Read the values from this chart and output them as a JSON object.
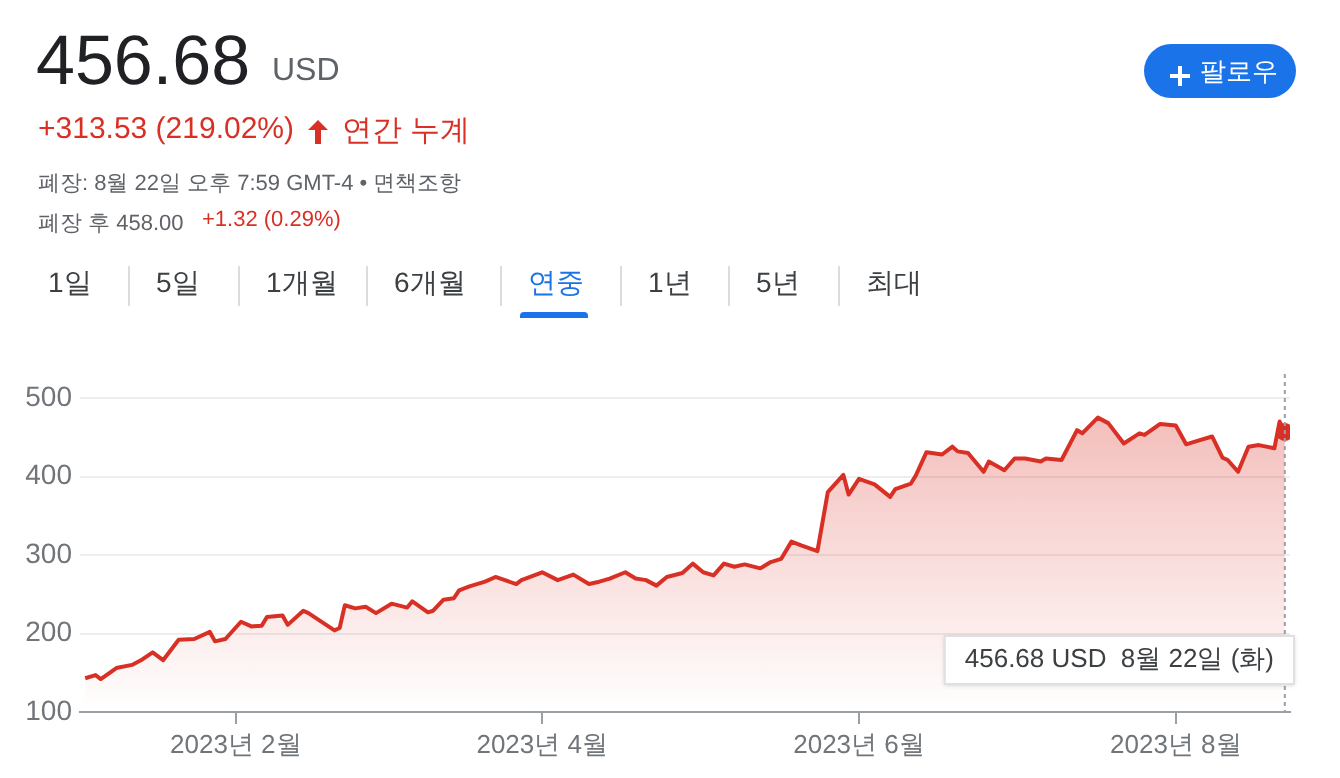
{
  "chart_data": {
    "type": "area",
    "title": "456.68",
    "subtitle": "USD",
    "annotations": [
      "+313.53 (219.02%)",
      "연간 누계",
      "폐장: 8월 22일 오후 7:59 GMT-4 • 면책조항",
      "폐장 후 458.00",
      "+1.32 (0.29%)",
      "팔로우",
      "1일",
      "5일",
      "1개월",
      "6개월",
      "연중",
      "1년",
      "5년",
      "최대",
      "456.68 USD  8월 22일 (화)"
    ],
    "ref_lines": [
      {
        "axis": "x",
        "value": "2023-08-22",
        "color": "#9aa0a6",
        "line_style": "dotted"
      }
    ],
    "x": [
      "2023-01-03",
      "2023-01-05",
      "2023-01-06",
      "2023-01-09",
      "2023-01-12",
      "2023-01-14",
      "2023-01-16",
      "2023-01-18",
      "2023-01-21",
      "2023-01-24",
      "2023-01-27",
      "2023-01-28",
      "2023-01-30",
      "2023-02-02",
      "2023-02-04",
      "2023-02-06",
      "2023-02-07",
      "2023-02-10",
      "2023-02-11",
      "2023-02-14",
      "2023-02-15",
      "2023-02-20",
      "2023-02-21",
      "2023-02-22",
      "2023-02-24",
      "2023-02-26",
      "2023-02-28",
      "2023-03-03",
      "2023-03-06",
      "2023-03-07",
      "2023-03-10",
      "2023-03-11",
      "2023-03-13",
      "2023-03-15",
      "2023-03-16",
      "2023-03-18",
      "2023-03-21",
      "2023-03-23",
      "2023-03-27",
      "2023-03-28",
      "2023-04-01",
      "2023-04-04",
      "2023-04-07",
      "2023-04-10",
      "2023-04-12",
      "2023-04-14",
      "2023-04-17",
      "2023-04-19",
      "2023-04-21",
      "2023-04-23",
      "2023-04-25",
      "2023-04-28",
      "2023-04-30",
      "2023-05-02",
      "2023-05-04",
      "2023-05-06",
      "2023-05-08",
      "2023-05-10",
      "2023-05-13",
      "2023-05-15",
      "2023-05-17",
      "2023-05-19",
      "2023-05-21",
      "2023-05-24",
      "2023-05-26",
      "2023-05-29",
      "2023-05-30",
      "2023-06-01",
      "2023-06-04",
      "2023-06-07",
      "2023-06-08",
      "2023-06-11",
      "2023-06-12",
      "2023-06-14",
      "2023-06-17",
      "2023-06-19",
      "2023-06-20",
      "2023-06-22",
      "2023-06-25",
      "2023-06-26",
      "2023-06-29",
      "2023-07-01",
      "2023-07-03",
      "2023-07-06",
      "2023-07-07",
      "2023-07-10",
      "2023-07-13",
      "2023-07-14",
      "2023-07-17",
      "2023-07-19",
      "2023-07-22",
      "2023-07-25",
      "2023-07-26",
      "2023-07-29",
      "2023-08-01",
      "2023-08-03",
      "2023-08-05",
      "2023-08-08",
      "2023-08-10",
      "2023-08-11",
      "2023-08-13",
      "2023-08-15",
      "2023-08-17",
      "2023-08-20",
      "2023-08-21",
      "2023-08-22"
    ],
    "series": [
      {
        "color": "#d93025",
        "values": [
          143,
          147,
          142,
          156,
          160,
          167,
          176,
          166,
          192,
          193,
          202,
          190,
          193,
          215,
          209,
          210,
          221,
          223,
          211,
          229,
          226,
          204,
          207,
          236,
          232,
          234,
          226,
          238,
          233,
          241,
          227,
          229,
          243,
          245,
          255,
          260,
          266,
          272,
          263,
          268,
          278,
          268,
          275,
          263,
          266,
          270,
          278,
          270,
          268,
          261,
          272,
          277,
          289,
          278,
          274,
          289,
          285,
          288,
          283,
          291,
          295,
          317,
          312,
          305,
          380,
          402,
          377,
          397,
          390,
          374,
          384,
          391,
          402,
          431,
          428,
          438,
          432,
          430,
          406,
          419,
          408,
          423,
          423,
          419,
          423,
          421,
          459,
          455,
          475,
          468,
          442,
          455,
          453,
          467,
          465,
          441,
          445,
          451,
          424,
          421,
          406,
          438,
          440,
          436,
          470,
          456.68
        ]
      }
    ],
    "xlim": [
      "2023-01-02",
      "2023-08-23"
    ],
    "xticks": [
      {
        "value": "2023-02-01",
        "label": "2023년 2월"
      },
      {
        "value": "2023-04-01",
        "label": "2023년 4월"
      },
      {
        "value": "2023-06-01",
        "label": "2023년 6월"
      },
      {
        "value": "2023-08-01",
        "label": "2023년 8월"
      }
    ],
    "ylim": [
      100,
      500
    ],
    "yticks": [
      100,
      200,
      300,
      400,
      500
    ],
    "grid": "y",
    "legend": false,
    "marker": "none",
    "line_style": "solid"
  }
}
